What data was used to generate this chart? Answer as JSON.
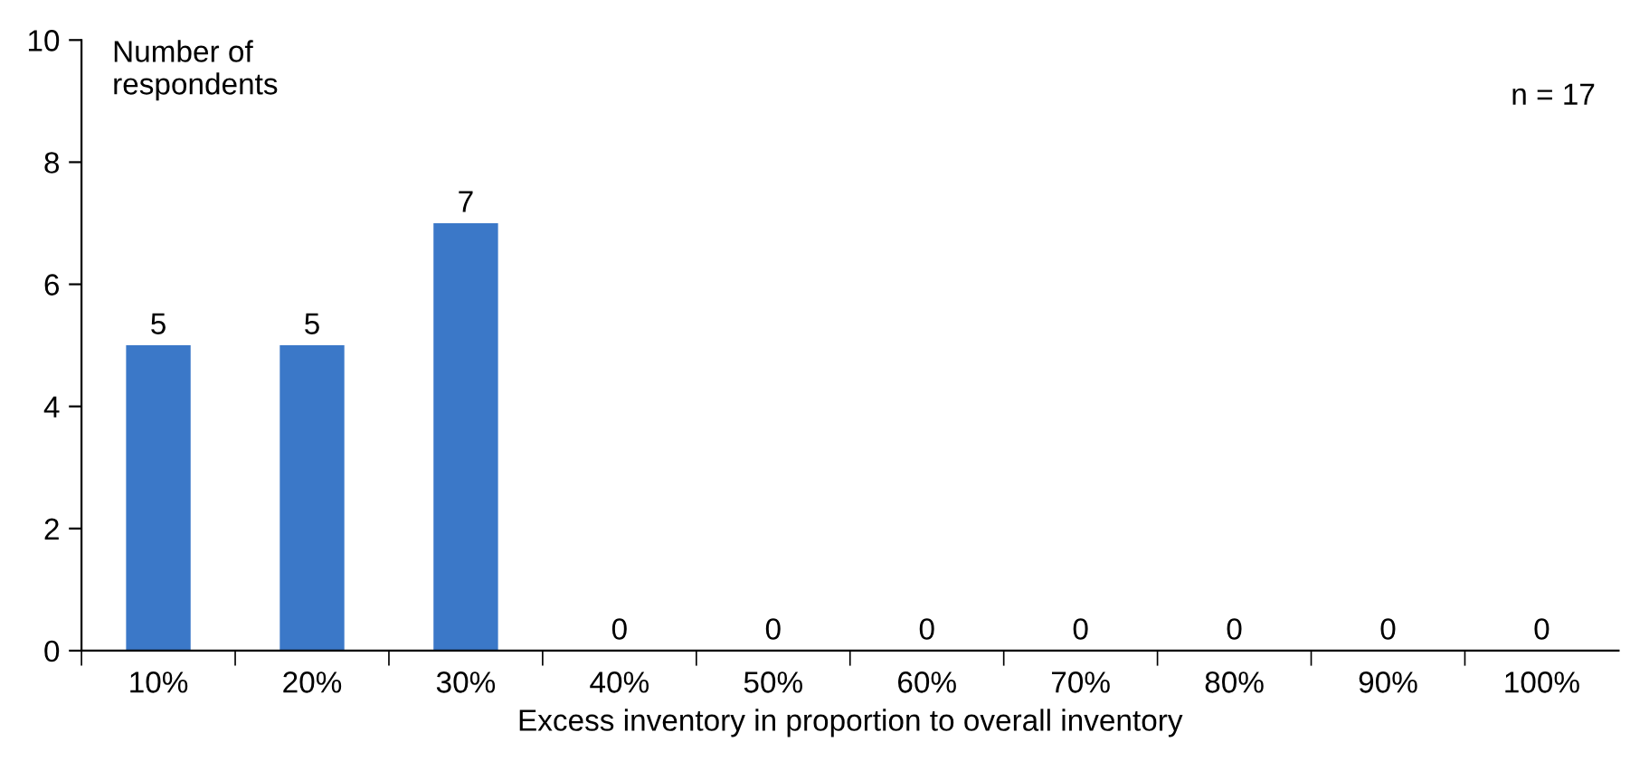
{
  "chart_data": {
    "type": "bar",
    "xlabel": "Excess inventory in proportion to overall inventory",
    "ylabel": "Number of\nrespondents",
    "categories": [
      "10%",
      "20%",
      "30%",
      "40%",
      "50%",
      "60%",
      "70%",
      "80%",
      "90%",
      "100%"
    ],
    "values": [
      5,
      5,
      7,
      0,
      0,
      0,
      0,
      0,
      0,
      0
    ],
    "color": "#3b78c8",
    "ylim": [
      0,
      10
    ],
    "yticks": [
      0,
      2,
      4,
      6,
      8,
      10
    ],
    "grid": false,
    "legend": false,
    "data_labels": true,
    "annotations": [
      "n = 17"
    ]
  }
}
